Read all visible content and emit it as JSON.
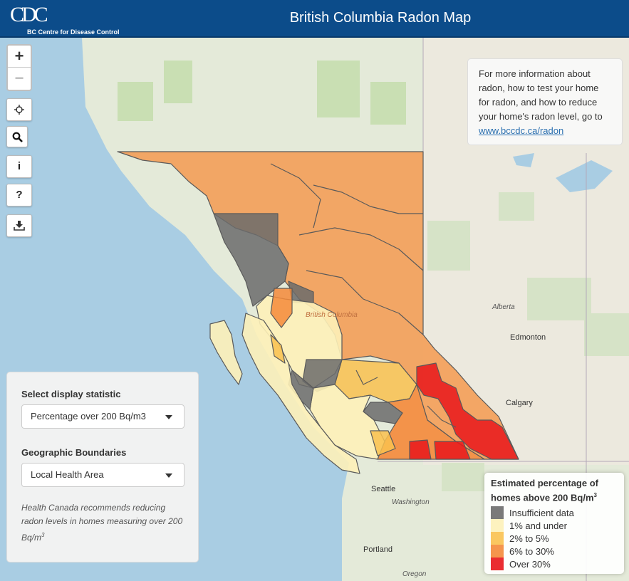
{
  "header": {
    "logo_mark": "CDC",
    "logo_text": "BC Centre for Disease Control",
    "title": "British Columbia Radon Map"
  },
  "controls": {
    "zoom_in": "+",
    "zoom_out": "−",
    "locate_icon": "crosshair-icon",
    "search_icon": "search-icon",
    "info_label": "i",
    "help_label": "?",
    "download_icon": "download-icon"
  },
  "info_box": {
    "text": "For more information about radon, how to test your home for radon, and how to reduce your home's radon level, go to",
    "link_text": "www.bccdc.ca/radon"
  },
  "panel": {
    "statistic_label": "Select display statistic",
    "statistic_value": "Percentage over 200 Bq/m3",
    "boundaries_label": "Geographic Boundaries",
    "boundaries_value": "Local Health Area",
    "note_text": "Health Canada recommends reducing radon levels in homes measuring over 200 Bq/m",
    "note_sup": "3"
  },
  "legend": {
    "title": "Estimated percentage of homes above 200 Bq/m",
    "title_sup": "3",
    "items": [
      {
        "label": "Insufficient data",
        "color": "#6b6b6b"
      },
      {
        "label": "1% and under",
        "color": "#fdf1b8"
      },
      {
        "label": "2% to 5%",
        "color": "#f9c14f"
      },
      {
        "label": "6% to 30%",
        "color": "#f48a3a"
      },
      {
        "label": "Over 30%",
        "color": "#e8161b"
      }
    ]
  },
  "map_labels": {
    "british_columbia": "British Columbia",
    "alberta": "Alberta",
    "edmonton": "Edmonton",
    "calgary": "Calgary",
    "seattle": "Seattle",
    "washington": "Washington",
    "portland": "Portland",
    "oregon": "Oregon"
  }
}
